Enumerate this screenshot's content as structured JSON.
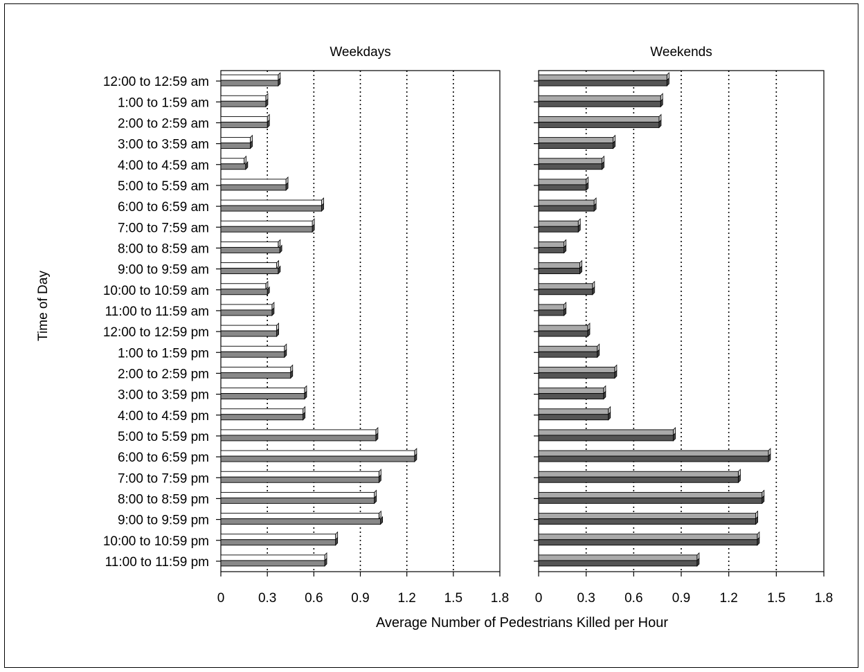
{
  "chart_data": {
    "type": "bar",
    "orientation": "horizontal",
    "ylabel": "Time of Day",
    "xlabel": "Average Number of Pedestrians Killed per Hour",
    "categories": [
      "12:00 to 12:59 am",
      "1:00 to 1:59 am",
      "2:00 to 2:59 am",
      "3:00 to 3:59 am",
      "4:00 to 4:59 am",
      "5:00 to 5:59 am",
      "6:00 to 6:59 am",
      "7:00 to 7:59 am",
      "8:00 to 8:59 am",
      "9:00 to 9:59 am",
      "10:00 to 10:59 am",
      "11:00 to 11:59 am",
      "12:00 to 12:59 pm",
      "1:00 to 1:59 pm",
      "2:00 to 2:59 pm",
      "3:00 to 3:59 pm",
      "4:00 to 4:59 pm",
      "5:00 to 5:59 pm",
      "6:00 to 6:59 pm",
      "7:00 to 7:59 pm",
      "8:00 to 8:59 pm",
      "9:00 to 9:59 pm",
      "10:00 to 10:59 pm",
      "11:00 to 11:59 pm"
    ],
    "xlim": [
      0,
      1.8
    ],
    "xticks": [
      "0",
      "0.3",
      "0.6",
      "0.9",
      "1.2",
      "1.5",
      "1.8"
    ],
    "grid": "vertical dotted",
    "panels": [
      {
        "title": "Weekdays",
        "series": [
          {
            "values": [
              0.37,
              0.29,
              0.3,
              0.19,
              0.15,
              0.42,
              0.65,
              0.59,
              0.37,
              0.36,
              0.29,
              0.33,
              0.36,
              0.41,
              0.45,
              0.54,
              0.53,
              1.0,
              1.25,
              1.02,
              0.99,
              1.02,
              0.74,
              0.67
            ],
            "color": "#ffffff"
          },
          {
            "values": [
              0.37,
              0.29,
              0.3,
              0.19,
              0.16,
              0.42,
              0.65,
              0.59,
              0.38,
              0.37,
              0.3,
              0.33,
              0.36,
              0.41,
              0.45,
              0.54,
              0.53,
              1.0,
              1.25,
              1.02,
              0.99,
              1.03,
              0.74,
              0.67
            ],
            "color": "#888888"
          }
        ]
      },
      {
        "title": "Weekends",
        "series": [
          {
            "values": [
              0.81,
              0.77,
              0.76,
              0.47,
              0.4,
              0.3,
              0.35,
              0.25,
              0.16,
              0.26,
              0.34,
              0.16,
              0.31,
              0.37,
              0.48,
              0.41,
              0.44,
              0.85,
              1.45,
              1.26,
              1.41,
              1.37,
              1.38,
              1.0
            ],
            "color": "#aaaaaa"
          },
          {
            "values": [
              0.81,
              0.77,
              0.76,
              0.47,
              0.4,
              0.3,
              0.35,
              0.25,
              0.16,
              0.26,
              0.34,
              0.16,
              0.31,
              0.37,
              0.48,
              0.41,
              0.44,
              0.85,
              1.45,
              1.26,
              1.41,
              1.37,
              1.38,
              1.0
            ],
            "color": "#555555"
          }
        ]
      }
    ]
  }
}
